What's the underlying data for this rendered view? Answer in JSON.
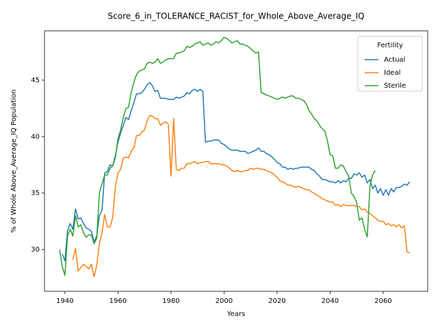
{
  "chart_data": {
    "type": "line",
    "title": "Score_6_in_TOLERANCE_RACIST_for_Whole_Above_Average_IQ",
    "x_label": "Years",
    "y_label": "% of Whole Above_Average_IQ Population",
    "legend_title": "Fertility",
    "legend_position": "upper right",
    "grid": false,
    "xlim": [
      1932.3,
      2076.8
    ],
    "ylim": [
      26.3,
      49.37
    ],
    "xticks": [
      1940,
      1960,
      1980,
      2000,
      2020,
      2040,
      2060
    ],
    "yticks": [
      30,
      35,
      40,
      45
    ],
    "x": [
      1938,
      1939,
      1940,
      1941,
      1942,
      1943,
      1944,
      1945,
      1946,
      1947,
      1948,
      1949,
      1950,
      1951,
      1952,
      1953,
      1954,
      1955,
      1956,
      1957,
      1958,
      1959,
      1960,
      1961,
      1962,
      1963,
      1964,
      1965,
      1966,
      1967,
      1968,
      1969,
      1970,
      1971,
      1972,
      1973,
      1974,
      1975,
      1976,
      1977,
      1978,
      1979,
      1980,
      1981,
      1982,
      1983,
      1984,
      1985,
      1986,
      1987,
      1988,
      1989,
      1990,
      1991,
      1992,
      1993,
      1994,
      1995,
      1996,
      1997,
      1998,
      1999,
      2000,
      2001,
      2002,
      2003,
      2004,
      2005,
      2006,
      2007,
      2008,
      2009,
      2010,
      2011,
      2012,
      2013,
      2014,
      2015,
      2016,
      2017,
      2018,
      2019,
      2020,
      2021,
      2022,
      2023,
      2024,
      2025,
      2026,
      2027,
      2028,
      2029,
      2030,
      2031,
      2032,
      2033,
      2034,
      2035,
      2036,
      2037,
      2038,
      2039,
      2040,
      2041,
      2042,
      2043,
      2044,
      2045,
      2046,
      2047,
      2048,
      2049,
      2050,
      2051,
      2052,
      2053,
      2054,
      2055,
      2056,
      2057,
      2058,
      2059,
      2060,
      2061,
      2062,
      2063,
      2064,
      2065,
      2066,
      2067,
      2068,
      2069,
      2070
    ],
    "series": [
      {
        "name": "Actual",
        "color": "#1f77b4",
        "values": [
          null,
          29.6,
          29.0,
          31.7,
          32.3,
          31.8,
          33.6,
          32.7,
          32.8,
          32.3,
          31.9,
          31.8,
          31.6,
          30.7,
          31.2,
          33.0,
          33.5,
          36.8,
          36.9,
          37.5,
          37.4,
          38.3,
          39.5,
          40.3,
          41.0,
          41.7,
          41.5,
          42.3,
          43.0,
          43.8,
          43.8,
          43.9,
          44.2,
          44.6,
          44.8,
          44.5,
          44.0,
          44.1,
          43.4,
          43.4,
          43.4,
          43.3,
          43.3,
          43.3,
          43.5,
          43.4,
          43.5,
          43.6,
          43.9,
          43.8,
          44.1,
          44.2,
          44.0,
          44.2,
          44.0,
          39.5,
          39.6,
          39.6,
          39.7,
          39.7,
          39.7,
          39.4,
          39.3,
          39.1,
          38.9,
          38.8,
          38.8,
          38.8,
          38.7,
          38.7,
          38.7,
          38.5,
          38.6,
          38.7,
          38.8,
          39.0,
          38.7,
          38.7,
          38.5,
          38.4,
          38.2,
          38.0,
          37.7,
          37.6,
          37.3,
          37.3,
          37.1,
          37.2,
          37.1,
          37.2,
          37.2,
          37.3,
          37.3,
          37.3,
          37.3,
          37.1,
          37.0,
          36.7,
          36.5,
          36.2,
          36.2,
          36.1,
          36.0,
          36.0,
          35.9,
          36.1,
          35.9,
          36.1,
          36.0,
          36.3,
          36.3,
          36.7,
          36.6,
          36.8,
          36.4,
          36.6,
          35.9,
          36.2,
          35.4,
          35.7,
          35.0,
          35.4,
          34.8,
          35.3,
          34.8,
          35.4,
          35.1,
          35.5,
          35.5,
          35.6,
          35.8,
          35.7,
          36.0
        ]
      },
      {
        "name": "Ideal",
        "color": "#ff7f0e",
        "values": [
          null,
          null,
          null,
          null,
          null,
          29.1,
          30.1,
          28.1,
          28.4,
          28.7,
          28.5,
          28.3,
          28.7,
          27.6,
          28.6,
          30.5,
          31.5,
          33.1,
          32.0,
          32.0,
          32.8,
          35.5,
          36.8,
          37.1,
          38.1,
          38.2,
          38.1,
          38.7,
          39.0,
          40.1,
          40.1,
          40.4,
          40.6,
          41.4,
          41.9,
          41.8,
          41.6,
          41.6,
          41.0,
          41.2,
          41.3,
          41.1,
          36.5,
          41.6,
          37.1,
          37.0,
          37.2,
          37.2,
          37.6,
          37.6,
          37.7,
          37.8,
          37.6,
          37.7,
          37.7,
          37.8,
          37.8,
          37.6,
          37.6,
          37.6,
          37.6,
          37.5,
          37.5,
          37.4,
          37.2,
          37.0,
          36.9,
          37.0,
          36.9,
          36.9,
          37.0,
          37.0,
          37.2,
          37.1,
          37.2,
          37.2,
          37.1,
          37.1,
          37.0,
          36.9,
          36.8,
          36.6,
          36.4,
          36.1,
          36.0,
          35.9,
          35.7,
          35.7,
          35.6,
          35.5,
          35.6,
          35.5,
          35.4,
          35.3,
          35.3,
          35.1,
          35.0,
          34.8,
          34.7,
          34.5,
          34.4,
          34.3,
          34.2,
          34.2,
          33.9,
          34.0,
          33.8,
          34.0,
          33.9,
          33.9,
          33.9,
          33.9,
          33.8,
          33.8,
          33.5,
          33.6,
          33.3,
          33.2,
          33.0,
          32.8,
          32.6,
          32.5,
          32.5,
          32.2,
          32.3,
          32.1,
          32.2,
          32.0,
          32.2,
          31.9,
          32.1,
          29.8,
          29.7
        ]
      },
      {
        "name": "Sterile",
        "color": "#2ca02c",
        "values": [
          30.0,
          28.5,
          27.7,
          31.2,
          31.8,
          31.2,
          33.0,
          32.0,
          32.2,
          31.5,
          31.1,
          31.3,
          31.3,
          30.5,
          31.0,
          35.0,
          35.8,
          36.6,
          36.6,
          37.2,
          37.4,
          38.1,
          39.8,
          40.6,
          41.7,
          42.5,
          42.6,
          43.9,
          44.8,
          45.5,
          45.8,
          45.9,
          46.0,
          46.5,
          46.6,
          46.5,
          46.6,
          46.9,
          46.5,
          46.6,
          46.8,
          46.9,
          46.9,
          46.9,
          47.4,
          47.4,
          47.5,
          47.6,
          48.0,
          47.9,
          48.0,
          48.2,
          48.3,
          48.4,
          48.1,
          48.2,
          48.3,
          48.1,
          48.2,
          48.4,
          48.3,
          48.5,
          48.8,
          48.7,
          48.5,
          48.3,
          48.4,
          48.5,
          48.2,
          48.2,
          48.1,
          48.0,
          47.8,
          47.6,
          47.4,
          47.5,
          43.9,
          43.8,
          43.7,
          43.6,
          43.5,
          43.4,
          43.3,
          43.4,
          43.5,
          43.4,
          43.5,
          43.6,
          43.6,
          43.4,
          43.4,
          43.3,
          43.2,
          42.9,
          42.3,
          42.0,
          41.6,
          41.4,
          41.0,
          40.7,
          40.5,
          39.6,
          38.4,
          38.3,
          37.2,
          37.2,
          37.5,
          37.4,
          36.9,
          36.5,
          35.0,
          34.7,
          34.2,
          32.6,
          32.8,
          31.8,
          31.1,
          35.6,
          36.6,
          37.0,
          null,
          null,
          null,
          null,
          null,
          null,
          null,
          null,
          null,
          null,
          null,
          null,
          null
        ]
      }
    ]
  }
}
